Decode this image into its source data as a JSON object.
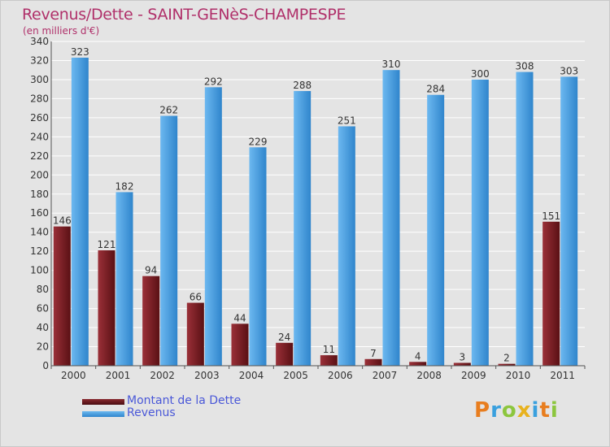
{
  "chart_data": {
    "type": "bar",
    "title": "Revenus/Dette - SAINT-GENèS-CHAMPESPE",
    "subtitle": "(en milliers d'€)",
    "categories": [
      "2000",
      "2001",
      "2002",
      "2003",
      "2004",
      "2005",
      "2006",
      "2007",
      "2008",
      "2009",
      "2010",
      "2011"
    ],
    "series": [
      {
        "name": "Montant de la Dette",
        "color": "#7a1f25",
        "values": [
          146,
          121,
          94,
          66,
          44,
          24,
          11,
          7,
          4,
          3,
          2,
          151
        ]
      },
      {
        "name": "Revenus",
        "color": "#4aa3e6",
        "values": [
          323,
          182,
          262,
          292,
          229,
          288,
          251,
          310,
          284,
          300,
          308,
          303
        ]
      }
    ],
    "ylim": [
      0,
      340
    ],
    "ytick_step": 20,
    "grid": true,
    "legend_position": "bottom-left"
  },
  "logo": {
    "text": "Proxiti",
    "colors": [
      "#e87d1e",
      "#3aa0de",
      "#8cc63e",
      "#e8b21e",
      "#3aa0de",
      "#e87d1e",
      "#8cc63e"
    ]
  },
  "colors": {
    "background": "#e4e4e4",
    "title": "#b0306a",
    "legend_text": "#4a58d8"
  }
}
